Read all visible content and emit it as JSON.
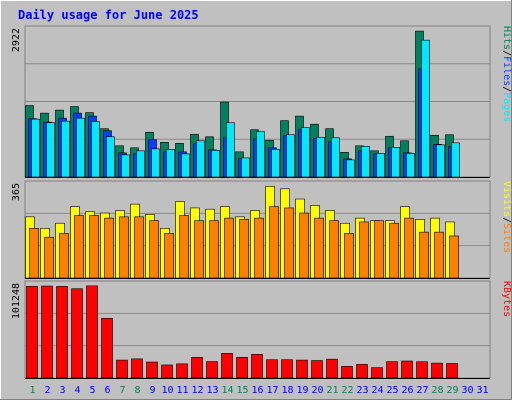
{
  "title": "Daily usage for June 2025",
  "colors": {
    "background": "#c0c0c0",
    "frame": "#e8e8e8",
    "title": "#0000ff",
    "hits": "#00805c",
    "files": "#0040ff",
    "pages": "#00e8ff",
    "visits": "#ffff00",
    "sites": "#ff8000",
    "kbytes": "#ff0000",
    "weekend_label": "#00805c",
    "weekday_label": "#0000ff"
  },
  "chart_data": [
    {
      "type": "bar",
      "panel": "top",
      "y_label_max": "2922",
      "ylim": [
        0,
        2922
      ],
      "grid": true,
      "legend": [
        "Pages",
        "Files",
        "Hits"
      ],
      "categories": [
        "1",
        "2",
        "3",
        "4",
        "5",
        "6",
        "7",
        "8",
        "9",
        "10",
        "11",
        "12",
        "13",
        "14",
        "15",
        "16",
        "17",
        "18",
        "19",
        "20",
        "21",
        "22",
        "23",
        "24",
        "25",
        "26",
        "27",
        "28",
        "29",
        "30",
        "31"
      ],
      "series": [
        {
          "name": "Hits",
          "values": [
            1420,
            1270,
            1330,
            1400,
            1280,
            960,
            620,
            580,
            890,
            690,
            670,
            850,
            800,
            1490,
            500,
            940,
            730,
            1120,
            1210,
            1050,
            960,
            490,
            620,
            520,
            810,
            720,
            2900,
            830,
            840,
            null,
            null
          ]
        },
        {
          "name": "Files",
          "values": [
            1160,
            1090,
            1170,
            1270,
            1210,
            920,
            480,
            460,
            740,
            500,
            500,
            660,
            540,
            780,
            370,
            760,
            580,
            820,
            950,
            770,
            700,
            360,
            520,
            460,
            590,
            480,
            2150,
            650,
            610,
            null,
            null
          ]
        },
        {
          "name": "Pages",
          "values": [
            1150,
            1080,
            1110,
            1170,
            1100,
            800,
            440,
            520,
            560,
            550,
            460,
            720,
            530,
            1080,
            380,
            900,
            550,
            840,
            980,
            790,
            780,
            340,
            610,
            470,
            590,
            470,
            2720,
            640,
            680,
            null,
            null
          ]
        }
      ]
    },
    {
      "type": "bar",
      "panel": "middle",
      "y_label_max": "365",
      "ylim": [
        0,
        365
      ],
      "grid": true,
      "legend": [
        "Sites",
        "Visits"
      ],
      "categories": [
        "1",
        "2",
        "3",
        "4",
        "5",
        "6",
        "7",
        "8",
        "9",
        "10",
        "11",
        "12",
        "13",
        "14",
        "15",
        "16",
        "17",
        "18",
        "19",
        "20",
        "21",
        "22",
        "23",
        "24",
        "25",
        "26",
        "27",
        "28",
        "29",
        "30",
        "31"
      ],
      "series": [
        {
          "name": "Visits",
          "values": [
            240,
            195,
            215,
            280,
            260,
            255,
            265,
            290,
            250,
            195,
            300,
            275,
            270,
            280,
            240,
            265,
            360,
            350,
            310,
            285,
            265,
            215,
            235,
            225,
            225,
            280,
            230,
            235,
            220,
            null,
            null
          ]
        },
        {
          "name": "Sites",
          "values": [
            195,
            160,
            175,
            245,
            245,
            235,
            240,
            240,
            225,
            175,
            245,
            225,
            225,
            235,
            230,
            235,
            280,
            275,
            255,
            235,
            225,
            175,
            220,
            225,
            215,
            235,
            180,
            180,
            165,
            null,
            null
          ]
        }
      ]
    },
    {
      "type": "bar",
      "panel": "bottom",
      "y_label_max": "101248",
      "ylim": [
        0,
        101248
      ],
      "grid": true,
      "legend": [
        "KBytes"
      ],
      "categories": [
        "1",
        "2",
        "3",
        "4",
        "5",
        "6",
        "7",
        "8",
        "9",
        "10",
        "11",
        "12",
        "13",
        "14",
        "15",
        "16",
        "17",
        "18",
        "19",
        "20",
        "21",
        "22",
        "23",
        "24",
        "25",
        "26",
        "27",
        "28",
        "29",
        "30",
        "31"
      ],
      "series": [
        {
          "name": "KBytes",
          "values": [
            99800,
            100100,
            99700,
            97200,
            100300,
            65000,
            19500,
            20800,
            17400,
            14200,
            15400,
            22500,
            17900,
            26800,
            22500,
            25800,
            19900,
            19900,
            19500,
            19000,
            20500,
            12700,
            14800,
            11300,
            17800,
            18500,
            17700,
            16200,
            15800,
            null,
            null
          ]
        }
      ]
    }
  ],
  "legend_text": {
    "pages": "Pages",
    "files": "Files",
    "hits": "Hits",
    "sites": "Sites",
    "visits": "Visits",
    "kbytes": "KBytes",
    "sep": "/"
  },
  "weekend_days": [
    1,
    7,
    8,
    14,
    15,
    21,
    22,
    28,
    29
  ]
}
